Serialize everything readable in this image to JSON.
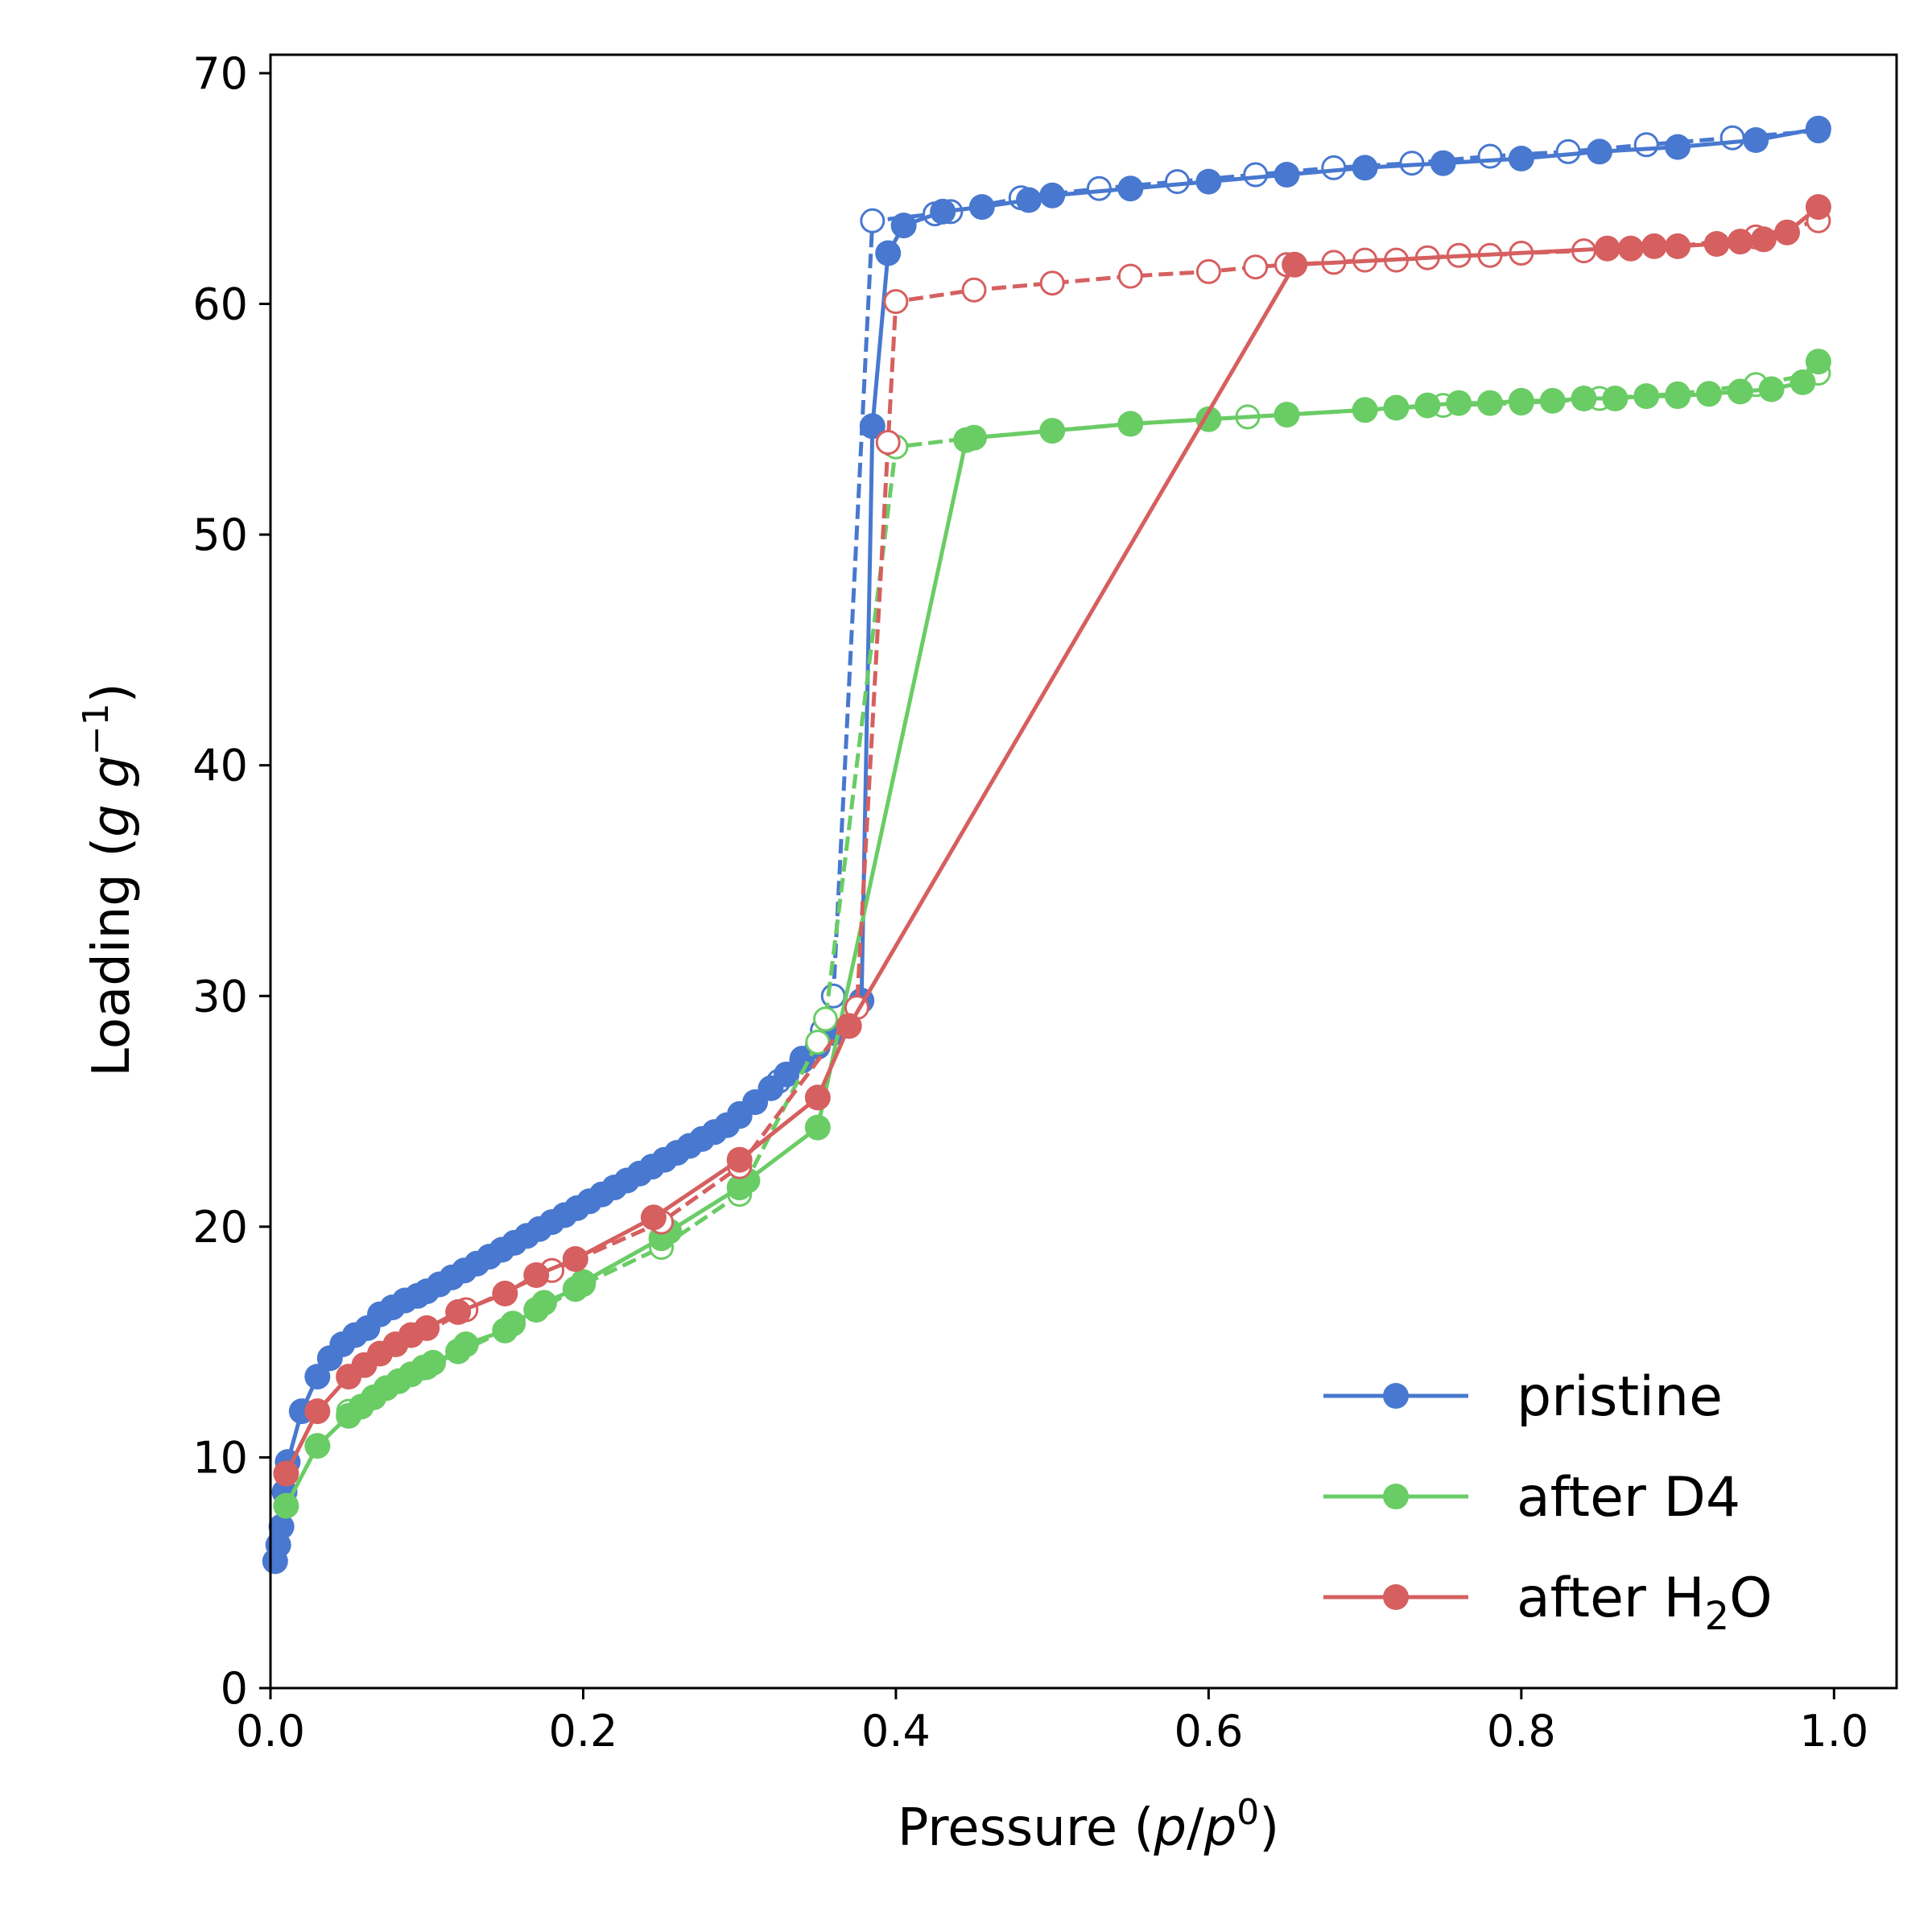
{
  "chart_data": {
    "type": "line",
    "title": "",
    "xlabel": {
      "base": "Pressure (",
      "var1": "p",
      "slash": "/",
      "var2": "p",
      "sup": "0",
      "end": ")"
    },
    "ylabel": {
      "base": "Loading (",
      "var": "g g",
      "sup": "−1",
      "end": ")"
    },
    "xlim": [
      0.0,
      1.04
    ],
    "ylim": [
      0,
      70.8
    ],
    "xticks": [
      0.0,
      0.2,
      0.4,
      0.6,
      0.8,
      1.0
    ],
    "xtick_labels": [
      "0.0",
      "0.2",
      "0.4",
      "0.6",
      "0.8",
      "1.0"
    ],
    "yticks": [
      0,
      10,
      20,
      30,
      40,
      50,
      60,
      70
    ],
    "ytick_labels": [
      "0",
      "10",
      "20",
      "30",
      "40",
      "50",
      "60",
      "70"
    ],
    "legend_position": "bottom-right",
    "series": [
      {
        "name": "pristine",
        "legend_label": "pristine",
        "color": "#4878cf",
        "adsorption": {
          "x": [
            0.003,
            0.005,
            0.007,
            0.009,
            0.011,
            0.02,
            0.03,
            0.038,
            0.046,
            0.054,
            0.062,
            0.07,
            0.078,
            0.086,
            0.094,
            0.1,
            0.108,
            0.116,
            0.124,
            0.132,
            0.14,
            0.148,
            0.156,
            0.164,
            0.172,
            0.18,
            0.188,
            0.196,
            0.204,
            0.212,
            0.22,
            0.228,
            0.236,
            0.244,
            0.252,
            0.26,
            0.268,
            0.276,
            0.284,
            0.292,
            0.3,
            0.31,
            0.32,
            0.33,
            0.34,
            0.35,
            0.36,
            0.378,
            0.385,
            0.395,
            0.405,
            0.43,
            0.455,
            0.485,
            0.5,
            0.55,
            0.6,
            0.65,
            0.7,
            0.75,
            0.8,
            0.85,
            0.9,
            0.95,
            0.99
          ],
          "y": [
            5.5,
            6.2,
            7.0,
            8.5,
            9.8,
            12.0,
            13.5,
            14.3,
            14.9,
            15.3,
            15.6,
            16.2,
            16.5,
            16.8,
            17.0,
            17.2,
            17.5,
            17.8,
            18.1,
            18.4,
            18.7,
            19.0,
            19.3,
            19.6,
            19.9,
            20.2,
            20.5,
            20.8,
            21.1,
            21.4,
            21.7,
            22.0,
            22.3,
            22.6,
            22.9,
            23.2,
            23.5,
            23.8,
            24.1,
            24.4,
            24.8,
            25.4,
            26.0,
            26.6,
            27.2,
            27.8,
            28.4,
            29.8,
            54.7,
            62.2,
            63.4,
            64.0,
            64.2,
            64.5,
            64.7,
            65.0,
            65.3,
            65.6,
            65.9,
            66.1,
            66.3,
            66.6,
            66.8,
            67.1,
            67.6
          ]
        },
        "desorption": {
          "x": [
            0.99,
            0.935,
            0.88,
            0.83,
            0.78,
            0.73,
            0.68,
            0.63,
            0.58,
            0.53,
            0.48,
            0.435,
            0.425,
            0.385,
            0.36,
            0.353,
            0.34,
            0.325,
            0.31,
            0.3
          ],
          "y": [
            67.5,
            67.2,
            66.9,
            66.6,
            66.4,
            66.1,
            65.9,
            65.6,
            65.3,
            65.0,
            64.6,
            64.0,
            63.9,
            63.6,
            30.0,
            28.5,
            27.3,
            26.3,
            25.4,
            24.9
          ]
        }
      },
      {
        "name": "after D4",
        "legend_label": "after D4",
        "color": "#6acc65",
        "adsorption": {
          "x": [
            0.01,
            0.03,
            0.05,
            0.058,
            0.066,
            0.074,
            0.082,
            0.09,
            0.098,
            0.104,
            0.12,
            0.125,
            0.15,
            0.155,
            0.17,
            0.175,
            0.195,
            0.2,
            0.25,
            0.255,
            0.3,
            0.305,
            0.35,
            0.445,
            0.45,
            0.5,
            0.55,
            0.6,
            0.65,
            0.7,
            0.72,
            0.74,
            0.76,
            0.78,
            0.8,
            0.82,
            0.84,
            0.86,
            0.88,
            0.9,
            0.92,
            0.94,
            0.96,
            0.98,
            0.99
          ],
          "y": [
            7.9,
            10.5,
            11.8,
            12.2,
            12.6,
            13.0,
            13.3,
            13.6,
            13.9,
            14.1,
            14.6,
            14.9,
            15.5,
            15.8,
            16.4,
            16.7,
            17.3,
            17.6,
            19.5,
            19.8,
            21.7,
            22.0,
            24.3,
            54.1,
            54.2,
            54.5,
            54.8,
            55.0,
            55.2,
            55.4,
            55.5,
            55.6,
            55.7,
            55.7,
            55.8,
            55.8,
            55.9,
            55.9,
            56.0,
            56.0,
            56.1,
            56.2,
            56.3,
            56.6,
            57.5
          ]
        },
        "desorption": {
          "x": [
            0.99,
            0.95,
            0.9,
            0.85,
            0.8,
            0.75,
            0.7,
            0.65,
            0.625,
            0.6,
            0.55,
            0.5,
            0.45,
            0.4,
            0.355,
            0.35,
            0.3,
            0.25,
            0.2,
            0.15,
            0.1,
            0.05
          ],
          "y": [
            57.0,
            56.5,
            56.1,
            55.9,
            55.7,
            55.6,
            55.4,
            55.2,
            55.1,
            55.0,
            54.8,
            54.5,
            54.2,
            53.8,
            29.0,
            28.0,
            21.4,
            19.1,
            17.5,
            15.5,
            13.9,
            12.0
          ]
        }
      },
      {
        "name": "after H2O",
        "legend_label": {
          "base": "after H",
          "sub": "2",
          "end": "O"
        },
        "color": "#d65f5f",
        "adsorption": {
          "x": [
            0.01,
            0.03,
            0.05,
            0.06,
            0.07,
            0.08,
            0.09,
            0.1,
            0.12,
            0.15,
            0.17,
            0.195,
            0.245,
            0.3,
            0.35,
            0.37,
            0.655,
            0.855,
            0.87,
            0.885,
            0.9,
            0.925,
            0.94,
            0.955,
            0.97,
            0.99
          ],
          "y": [
            9.3,
            12.0,
            13.5,
            14.0,
            14.5,
            14.9,
            15.3,
            15.6,
            16.3,
            17.1,
            17.9,
            18.6,
            20.4,
            22.9,
            25.6,
            28.7,
            61.7,
            62.4,
            62.4,
            62.5,
            62.5,
            62.6,
            62.7,
            62.8,
            63.1,
            64.2
          ]
        },
        "desorption": {
          "x": [
            0.99,
            0.95,
            0.9,
            0.84,
            0.8,
            0.78,
            0.76,
            0.74,
            0.72,
            0.7,
            0.68,
            0.65,
            0.63,
            0.6,
            0.55,
            0.5,
            0.45,
            0.4,
            0.395,
            0.375,
            0.3,
            0.25,
            0.18,
            0.125,
            0.05
          ],
          "y": [
            63.6,
            62.9,
            62.5,
            62.3,
            62.2,
            62.1,
            62.1,
            62.0,
            61.9,
            61.9,
            61.8,
            61.7,
            61.6,
            61.4,
            61.2,
            60.9,
            60.6,
            60.1,
            54.0,
            29.5,
            22.6,
            20.2,
            18.1,
            16.4,
            13.5
          ]
        }
      }
    ]
  }
}
